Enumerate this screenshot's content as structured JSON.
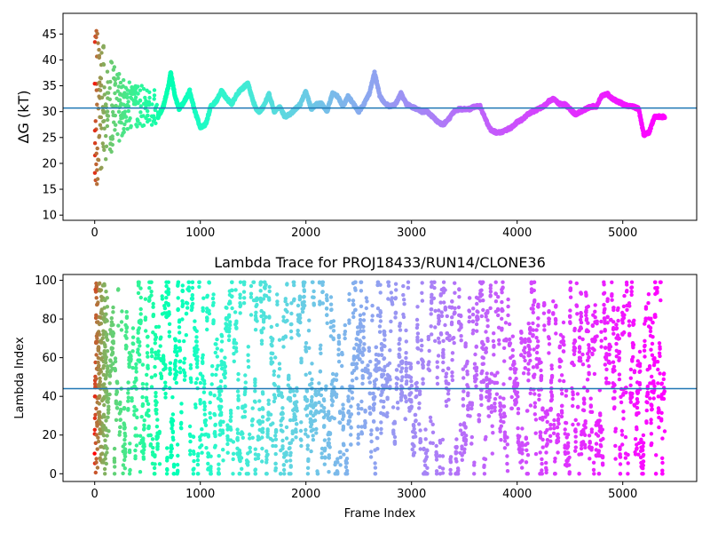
{
  "chart_data": [
    {
      "type": "scatter",
      "panel": "top",
      "title": "",
      "xlabel": "",
      "ylabel": "ΔG (kT)",
      "xlim": [
        -300,
        5700
      ],
      "ylim": [
        9,
        49
      ],
      "xticks": [
        0,
        1000,
        2000,
        3000,
        4000,
        5000
      ],
      "yticks": [
        10,
        15,
        20,
        25,
        30,
        35,
        40,
        45
      ],
      "hline": 30.7,
      "colormap": "rainbow",
      "x_max_frame": 5400,
      "noisy_segment": {
        "x_range": [
          0,
          600
        ],
        "center_y": 31,
        "initial_spread_y": [
          16,
          49
        ]
      },
      "trace_keypoints": [
        [
          600,
          29
        ],
        [
          650,
          31
        ],
        [
          700,
          35
        ],
        [
          720,
          37.5
        ],
        [
          760,
          33
        ],
        [
          800,
          30.5
        ],
        [
          850,
          32
        ],
        [
          900,
          34
        ],
        [
          950,
          30
        ],
        [
          1000,
          27
        ],
        [
          1050,
          27.5
        ],
        [
          1100,
          31
        ],
        [
          1150,
          32
        ],
        [
          1200,
          34
        ],
        [
          1250,
          32.5
        ],
        [
          1300,
          31.5
        ],
        [
          1350,
          33.5
        ],
        [
          1400,
          34.5
        ],
        [
          1450,
          35.5
        ],
        [
          1500,
          32
        ],
        [
          1530,
          30.5
        ],
        [
          1560,
          30
        ],
        [
          1600,
          31
        ],
        [
          1650,
          33.5
        ],
        [
          1700,
          30
        ],
        [
          1750,
          31
        ],
        [
          1800,
          29
        ],
        [
          1850,
          29.5
        ],
        [
          1900,
          30.5
        ],
        [
          1950,
          31.5
        ],
        [
          2000,
          34
        ],
        [
          2050,
          30.5
        ],
        [
          2100,
          31.5
        ],
        [
          2150,
          31.5
        ],
        [
          2200,
          30
        ],
        [
          2250,
          33.5
        ],
        [
          2300,
          33
        ],
        [
          2350,
          31
        ],
        [
          2400,
          33
        ],
        [
          2450,
          31.5
        ],
        [
          2500,
          30
        ],
        [
          2550,
          31.5
        ],
        [
          2600,
          33.5
        ],
        [
          2650,
          37.5
        ],
        [
          2700,
          33
        ],
        [
          2750,
          31.5
        ],
        [
          2800,
          31
        ],
        [
          2850,
          31.5
        ],
        [
          2900,
          33.5
        ],
        [
          2950,
          31.5
        ],
        [
          3000,
          31
        ],
        [
          3050,
          30.5
        ],
        [
          3100,
          30
        ],
        [
          3150,
          30
        ],
        [
          3200,
          29
        ],
        [
          3250,
          28
        ],
        [
          3300,
          27.5
        ],
        [
          3350,
          28.5
        ],
        [
          3400,
          30
        ],
        [
          3450,
          30.5
        ],
        [
          3500,
          30.5
        ],
        [
          3550,
          30.5
        ],
        [
          3600,
          31
        ],
        [
          3650,
          31
        ],
        [
          3700,
          28.5
        ],
        [
          3750,
          26.5
        ],
        [
          3800,
          26
        ],
        [
          3850,
          26
        ],
        [
          3900,
          26.5
        ],
        [
          3950,
          27
        ],
        [
          4000,
          28
        ],
        [
          4050,
          28.5
        ],
        [
          4100,
          29.5
        ],
        [
          4150,
          30
        ],
        [
          4200,
          30.5
        ],
        [
          4250,
          31
        ],
        [
          4300,
          32
        ],
        [
          4350,
          32.5
        ],
        [
          4400,
          31.5
        ],
        [
          4450,
          31.5
        ],
        [
          4500,
          30.5
        ],
        [
          4550,
          29.5
        ],
        [
          4600,
          30
        ],
        [
          4650,
          30.5
        ],
        [
          4700,
          31
        ],
        [
          4750,
          31
        ],
        [
          4800,
          33
        ],
        [
          4850,
          33.5
        ],
        [
          4900,
          32.5
        ],
        [
          4950,
          32
        ],
        [
          5000,
          31.5
        ],
        [
          5050,
          31
        ],
        [
          5100,
          31
        ],
        [
          5150,
          30.5
        ],
        [
          5200,
          25.5
        ],
        [
          5250,
          26
        ],
        [
          5300,
          29
        ],
        [
          5350,
          29
        ],
        [
          5400,
          29
        ]
      ]
    },
    {
      "type": "scatter",
      "panel": "bottom",
      "title": "Lambda Trace for PROJ18433/RUN14/CLONE36",
      "xlabel": "Frame Index",
      "ylabel": "Lambda Index",
      "xlim": [
        -300,
        5700
      ],
      "ylim": [
        -4,
        103
      ],
      "xticks": [
        0,
        1000,
        2000,
        3000,
        4000,
        5000
      ],
      "yticks": [
        0,
        20,
        40,
        60,
        80,
        100
      ],
      "hline": 44,
      "colormap": "rainbow",
      "x_range": [
        0,
        5400
      ],
      "y_range": [
        0,
        99
      ]
    }
  ]
}
